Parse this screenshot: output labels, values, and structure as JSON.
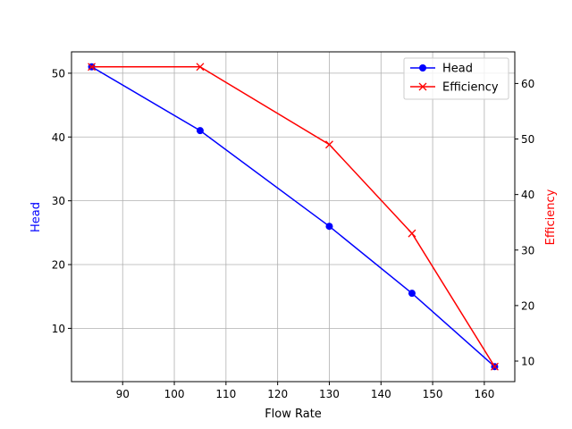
{
  "chart_data": {
    "type": "line",
    "xlabel": "Flow Rate",
    "ylabel_left": "Head",
    "ylabel_right": "Efficiency",
    "x": [
      84,
      105,
      130,
      146,
      162
    ],
    "xlim": [
      80.1,
      165.9
    ],
    "xticks": [
      90,
      100,
      110,
      120,
      130,
      140,
      150,
      160
    ],
    "ylim_left": [
      1.65,
      53.35
    ],
    "yticks_left": [
      10,
      20,
      30,
      40,
      50
    ],
    "ylim_right": [
      6.3,
      65.7
    ],
    "yticks_right": [
      10,
      20,
      30,
      40,
      50,
      60
    ],
    "grid": true,
    "legend_position": "top-right",
    "series": [
      {
        "name": "Head",
        "axis": "left",
        "values": [
          51,
          41,
          26,
          15.5,
          4
        ],
        "color": "#0000ff",
        "marker": "circle"
      },
      {
        "name": "Efficiency",
        "axis": "right",
        "values": [
          63,
          63,
          49,
          33,
          9
        ],
        "color": "#ff0000",
        "marker": "x"
      }
    ],
    "left_label_color": "#0000ff",
    "right_label_color": "#ff0000"
  }
}
